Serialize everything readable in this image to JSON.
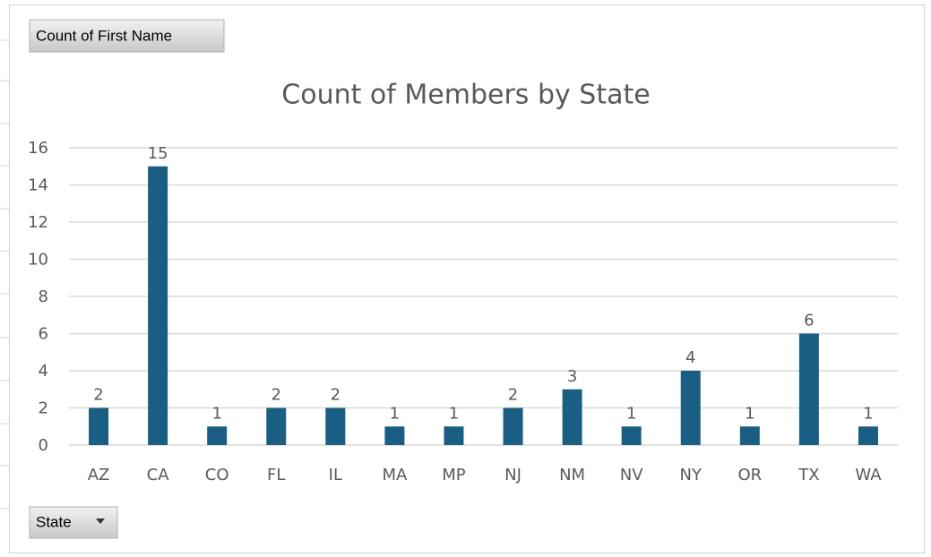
{
  "chart_data": {
    "type": "bar",
    "title": "Count of Members by State",
    "field_buttons": {
      "values": "Count of First Name",
      "axis": "State"
    },
    "categories": [
      "AZ",
      "CA",
      "CO",
      "FL",
      "IL",
      "MA",
      "MP",
      "NJ",
      "NM",
      "NV",
      "NY",
      "OR",
      "TX",
      "WA"
    ],
    "values": [
      2,
      15,
      1,
      2,
      2,
      1,
      1,
      2,
      3,
      1,
      4,
      1,
      6,
      1
    ],
    "color": "#1b5e83",
    "ylim": [
      0,
      16
    ],
    "yticks": [
      0,
      2,
      4,
      6,
      8,
      10,
      12,
      14,
      16
    ],
    "grid": true,
    "data_labels": true
  }
}
